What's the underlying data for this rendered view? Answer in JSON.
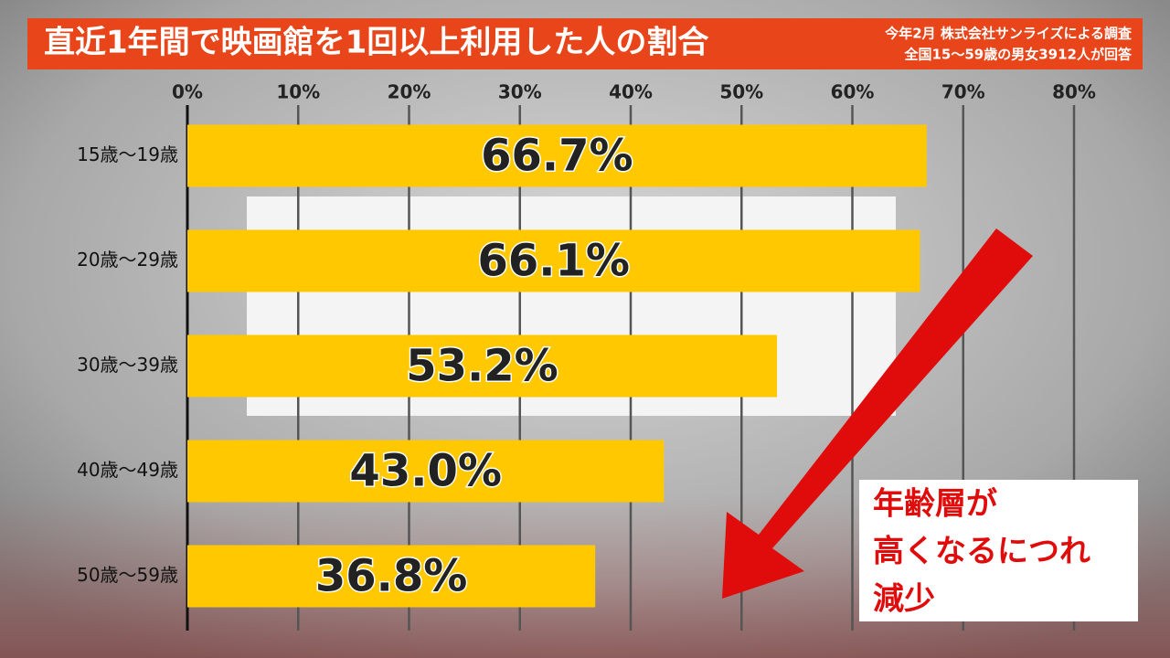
{
  "chart_data": {
    "type": "hbar",
    "title": "直近1年間で映画館を1回以上利用した人の割合",
    "subtitle": [
      "今年2月 株式会社サンライズによる調査",
      "全国15～59歳の男女3912人が回答"
    ],
    "categories": [
      "15歳～19歳",
      "20歳～29歳",
      "30歳～39歳",
      "40歳～49歳",
      "50歳～59歳"
    ],
    "values": [
      66.7,
      66.1,
      53.2,
      43.0,
      36.8
    ],
    "value_labels": [
      "66.7%",
      "66.1%",
      "53.2%",
      "43.0%",
      "36.8%"
    ],
    "color": "#ffc800",
    "xlim": [
      0,
      80
    ],
    "xticks": [
      {
        "value": 0,
        "label": "0%"
      },
      {
        "value": 10,
        "label": "10%"
      },
      {
        "value": 20,
        "label": "20%"
      },
      {
        "value": 30,
        "label": "30%"
      },
      {
        "value": 40,
        "label": "40%"
      },
      {
        "value": 50,
        "label": "50%"
      },
      {
        "value": 60,
        "label": "60%"
      },
      {
        "value": 70,
        "label": "70%"
      },
      {
        "value": 80,
        "label": "80%"
      }
    ],
    "grid": true,
    "annotation": [
      "年齢層が",
      "高くなるにつれ",
      "減少"
    ]
  }
}
